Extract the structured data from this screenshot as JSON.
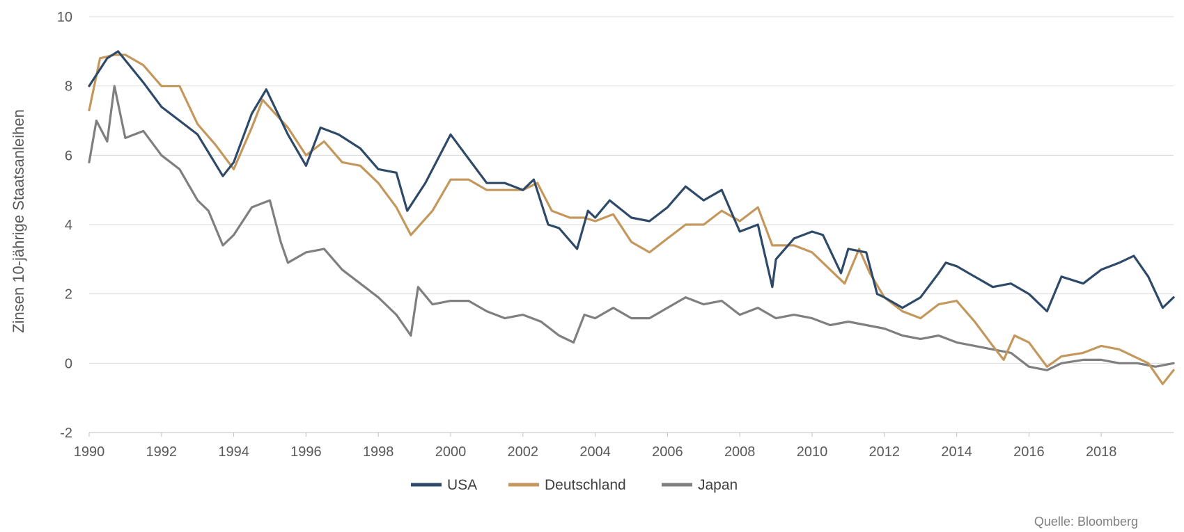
{
  "chart_data": {
    "type": "line",
    "ylabel": "Zinsen 10-jährige Staatsanleihen",
    "xlabel": "",
    "ylim": [
      -2,
      10
    ],
    "xlim": [
      1990,
      2020
    ],
    "yticks": [
      "10",
      "8",
      "6",
      "4",
      "2",
      "0",
      "-2"
    ],
    "xticks": [
      "1990",
      "1992",
      "1994",
      "1996",
      "1998",
      "2000",
      "2002",
      "2004",
      "2006",
      "2008",
      "2010",
      "2012",
      "2014",
      "2016",
      "2018"
    ],
    "grid": "horizontal",
    "legend_position": "bottom",
    "source": "Quelle: Bloomberg",
    "series": [
      {
        "name": "USA",
        "color": "#2e4a68",
        "x": [
          1990.0,
          1990.5,
          1990.8,
          1991.5,
          1992.0,
          1992.5,
          1993.0,
          1993.7,
          1994.0,
          1994.5,
          1994.9,
          1995.5,
          1996.0,
          1996.4,
          1996.9,
          1997.5,
          1998.0,
          1998.5,
          1998.8,
          1999.3,
          1999.8,
          2000.0,
          2000.5,
          2001.0,
          2001.5,
          2002.0,
          2002.3,
          2002.7,
          2003.0,
          2003.5,
          2003.8,
          2004.0,
          2004.4,
          2005.0,
          2005.5,
          2006.0,
          2006.5,
          2007.0,
          2007.5,
          2008.0,
          2008.5,
          2008.9,
          2009.0,
          2009.5,
          2010.0,
          2010.3,
          2010.8,
          2011.0,
          2011.5,
          2011.8,
          2012.0,
          2012.5,
          2013.0,
          2013.5,
          2013.7,
          2014.0,
          2014.5,
          2015.0,
          2015.5,
          2016.0,
          2016.5,
          2016.9,
          2017.5,
          2018.0,
          2018.5,
          2018.9,
          2019.3,
          2019.7,
          2020.0
        ],
        "values": [
          8.0,
          8.8,
          9.0,
          8.1,
          7.4,
          7.0,
          6.6,
          5.4,
          5.8,
          7.2,
          7.9,
          6.6,
          5.7,
          6.8,
          6.6,
          6.2,
          5.6,
          5.5,
          4.4,
          5.2,
          6.2,
          6.6,
          5.9,
          5.2,
          5.2,
          5.0,
          5.3,
          4.0,
          3.9,
          3.3,
          4.4,
          4.2,
          4.7,
          4.2,
          4.1,
          4.5,
          5.1,
          4.7,
          5.0,
          3.8,
          4.0,
          2.2,
          3.0,
          3.6,
          3.8,
          3.7,
          2.6,
          3.3,
          3.2,
          2.0,
          1.9,
          1.6,
          1.9,
          2.6,
          2.9,
          2.8,
          2.5,
          2.2,
          2.3,
          2.0,
          1.5,
          2.5,
          2.3,
          2.7,
          2.9,
          3.1,
          2.5,
          1.6,
          1.9
        ]
      },
      {
        "name": "Deutschland",
        "color": "#c4975c",
        "x": [
          1990.0,
          1990.3,
          1990.7,
          1991.0,
          1991.5,
          1992.0,
          1992.5,
          1993.0,
          1993.5,
          1994.0,
          1994.5,
          1994.8,
          1995.5,
          1996.0,
          1996.5,
          1997.0,
          1997.5,
          1998.0,
          1998.5,
          1998.9,
          1999.5,
          2000.0,
          2000.5,
          2001.0,
          2001.5,
          2002.0,
          2002.4,
          2002.8,
          2003.3,
          2003.7,
          2004.0,
          2004.5,
          2005.0,
          2005.5,
          2006.0,
          2006.5,
          2007.0,
          2007.5,
          2008.0,
          2008.5,
          2008.9,
          2009.5,
          2010.0,
          2010.5,
          2010.9,
          2011.3,
          2011.6,
          2012.0,
          2012.5,
          2013.0,
          2013.5,
          2014.0,
          2014.5,
          2015.0,
          2015.3,
          2015.6,
          2016.0,
          2016.5,
          2016.9,
          2017.5,
          2018.0,
          2018.5,
          2018.9,
          2019.3,
          2019.7,
          2020.0
        ],
        "values": [
          7.3,
          8.8,
          8.9,
          8.9,
          8.6,
          8.0,
          8.0,
          6.9,
          6.3,
          5.6,
          6.8,
          7.6,
          6.8,
          6.0,
          6.4,
          5.8,
          5.7,
          5.2,
          4.5,
          3.7,
          4.4,
          5.3,
          5.3,
          5.0,
          5.0,
          5.0,
          5.2,
          4.4,
          4.2,
          4.2,
          4.1,
          4.3,
          3.5,
          3.2,
          3.6,
          4.0,
          4.0,
          4.4,
          4.1,
          4.5,
          3.4,
          3.4,
          3.2,
          2.7,
          2.3,
          3.3,
          2.6,
          1.9,
          1.5,
          1.3,
          1.7,
          1.8,
          1.2,
          0.5,
          0.1,
          0.8,
          0.6,
          -0.1,
          0.2,
          0.3,
          0.5,
          0.4,
          0.2,
          0.0,
          -0.6,
          -0.2
        ]
      },
      {
        "name": "Japan",
        "color": "#7f7f7f",
        "x": [
          1990.0,
          1990.2,
          1990.5,
          1990.7,
          1991.0,
          1991.5,
          1992.0,
          1992.5,
          1993.0,
          1993.3,
          1993.7,
          1994.0,
          1994.5,
          1995.0,
          1995.3,
          1995.5,
          1996.0,
          1996.5,
          1997.0,
          1997.5,
          1998.0,
          1998.5,
          1998.9,
          1999.1,
          1999.5,
          2000.0,
          2000.5,
          2001.0,
          2001.5,
          2002.0,
          2002.5,
          2003.0,
          2003.4,
          2003.7,
          2004.0,
          2004.5,
          2005.0,
          2005.5,
          2006.0,
          2006.5,
          2007.0,
          2007.5,
          2008.0,
          2008.5,
          2009.0,
          2009.5,
          2010.0,
          2010.5,
          2011.0,
          2011.5,
          2012.0,
          2012.5,
          2013.0,
          2013.5,
          2014.0,
          2014.5,
          2015.0,
          2015.5,
          2016.0,
          2016.5,
          2016.9,
          2017.5,
          2018.0,
          2018.5,
          2019.0,
          2019.5,
          2020.0
        ],
        "values": [
          5.8,
          7.0,
          6.4,
          8.0,
          6.5,
          6.7,
          6.0,
          5.6,
          4.7,
          4.4,
          3.4,
          3.7,
          4.5,
          4.7,
          3.5,
          2.9,
          3.2,
          3.3,
          2.7,
          2.3,
          1.9,
          1.4,
          0.8,
          2.2,
          1.7,
          1.8,
          1.8,
          1.5,
          1.3,
          1.4,
          1.2,
          0.8,
          0.6,
          1.4,
          1.3,
          1.6,
          1.3,
          1.3,
          1.6,
          1.9,
          1.7,
          1.8,
          1.4,
          1.6,
          1.3,
          1.4,
          1.3,
          1.1,
          1.2,
          1.1,
          1.0,
          0.8,
          0.7,
          0.8,
          0.6,
          0.5,
          0.4,
          0.3,
          -0.1,
          -0.2,
          0.0,
          0.1,
          0.1,
          0.0,
          0.0,
          -0.1,
          0.0
        ]
      }
    ]
  }
}
